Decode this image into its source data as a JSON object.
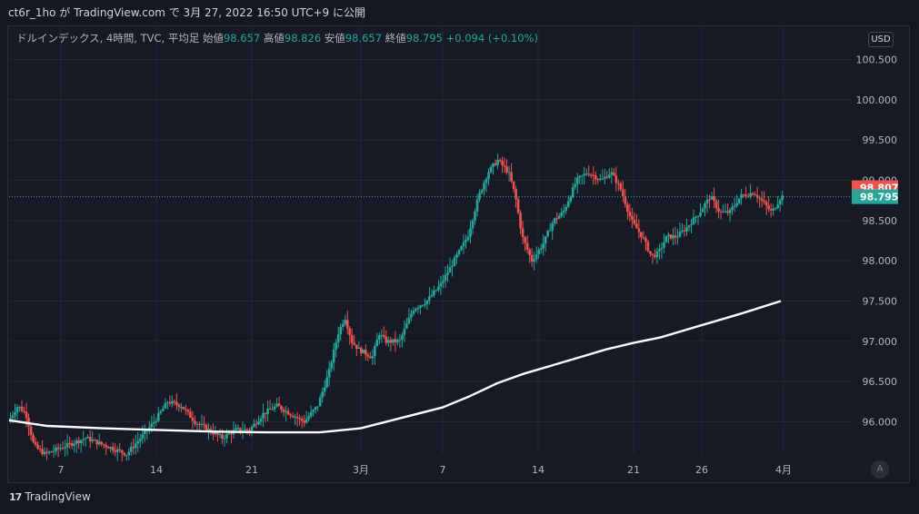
{
  "header": {
    "publish_text": "ct6r_1ho が TradingView.com で 3月 27, 2022 16:50 UTC+9 に公開"
  },
  "legend": {
    "symbol": "ドルインデックス, 4時間, TVC, 平均足",
    "open_label": "始値",
    "open": "98.657",
    "high_label": "高値",
    "high": "98.826",
    "low_label": "安値",
    "low": "98.657",
    "close_label": "終値",
    "close": "98.795",
    "change": "+0.094 (+0.10%)"
  },
  "currency_button": "USD",
  "auto_button": "A",
  "price_labels": {
    "red": "98.807",
    "green": "98.795"
  },
  "footer": {
    "brand": "TradingView",
    "logo_text": "17"
  },
  "colors": {
    "up": "#26a69a",
    "down": "#ef5350",
    "ma": "#ffffff",
    "bg": "#161a25"
  },
  "chart_data": {
    "type": "candlestick",
    "title": "ドルインデックス, 4時間, TVC, 平均足",
    "y_ticks": [
      "100.500",
      "100.000",
      "99.500",
      "99.000",
      "98.500",
      "98.000",
      "97.500",
      "97.000",
      "96.500",
      "96.000"
    ],
    "y_tick_values": [
      100.5,
      100.0,
      99.5,
      99.0,
      98.5,
      98.0,
      97.5,
      97.0,
      96.5,
      96.0
    ],
    "ylim": [
      95.6,
      100.9
    ],
    "x_ticks": [
      "7",
      "14",
      "21",
      "3月",
      "7",
      "14",
      "21",
      "26",
      "4月"
    ],
    "x_tick_days": [
      7,
      14,
      21,
      29,
      35,
      42,
      49,
      54,
      60
    ],
    "xlim": [
      3.2,
      65
    ],
    "last_price": 98.795,
    "current_price_marker": 98.807,
    "price_path": [
      [
        3.3,
        96.0
      ],
      [
        4.0,
        96.2
      ],
      [
        4.6,
        96.1
      ],
      [
        5.2,
        95.7
      ],
      [
        6.0,
        95.6
      ],
      [
        7.5,
        95.7
      ],
      [
        9.0,
        95.8
      ],
      [
        10.5,
        95.7
      ],
      [
        12.0,
        95.6
      ],
      [
        13.0,
        95.8
      ],
      [
        14.0,
        96.0
      ],
      [
        15.0,
        96.25
      ],
      [
        16.0,
        96.2
      ],
      [
        17.0,
        96.0
      ],
      [
        18.0,
        95.9
      ],
      [
        19.0,
        95.8
      ],
      [
        20.0,
        95.9
      ],
      [
        21.0,
        95.9
      ],
      [
        22.0,
        96.1
      ],
      [
        23.0,
        96.2
      ],
      [
        24.0,
        96.1
      ],
      [
        25.0,
        96.0
      ],
      [
        26.0,
        96.2
      ],
      [
        26.8,
        96.6
      ],
      [
        27.5,
        97.1
      ],
      [
        28.0,
        97.3
      ],
      [
        28.5,
        97.0
      ],
      [
        29.0,
        96.9
      ],
      [
        30.0,
        96.8
      ],
      [
        30.5,
        97.1
      ],
      [
        31.0,
        97.0
      ],
      [
        32.0,
        97.0
      ],
      [
        33.0,
        97.4
      ],
      [
        34.0,
        97.5
      ],
      [
        35.0,
        97.7
      ],
      [
        36.0,
        98.0
      ],
      [
        37.0,
        98.3
      ],
      [
        37.8,
        98.8
      ],
      [
        38.5,
        99.1
      ],
      [
        39.2,
        99.25
      ],
      [
        40.0,
        99.1
      ],
      [
        40.5,
        98.8
      ],
      [
        41.0,
        98.3
      ],
      [
        41.7,
        98.0
      ],
      [
        42.5,
        98.2
      ],
      [
        43.3,
        98.5
      ],
      [
        44.0,
        98.6
      ],
      [
        45.0,
        99.0
      ],
      [
        45.8,
        99.1
      ],
      [
        46.8,
        99.0
      ],
      [
        47.5,
        99.1
      ],
      [
        48.2,
        98.9
      ],
      [
        49.0,
        98.5
      ],
      [
        49.8,
        98.3
      ],
      [
        50.5,
        98.05
      ],
      [
        51.0,
        98.1
      ],
      [
        51.6,
        98.3
      ],
      [
        52.3,
        98.3
      ],
      [
        53.0,
        98.4
      ],
      [
        54.0,
        98.6
      ],
      [
        54.8,
        98.8
      ],
      [
        55.5,
        98.6
      ],
      [
        56.2,
        98.6
      ],
      [
        57.0,
        98.8
      ],
      [
        58.0,
        98.85
      ],
      [
        58.8,
        98.7
      ],
      [
        59.3,
        98.6
      ],
      [
        60.0,
        98.8
      ]
    ],
    "moving_average": [
      [
        3.2,
        96.02
      ],
      [
        6.0,
        95.95
      ],
      [
        10.0,
        95.92
      ],
      [
        14.0,
        95.9
      ],
      [
        18.0,
        95.88
      ],
      [
        22.0,
        95.87
      ],
      [
        26.0,
        95.87
      ],
      [
        29.0,
        95.92
      ],
      [
        32.0,
        96.05
      ],
      [
        35.0,
        96.18
      ],
      [
        37.0,
        96.32
      ],
      [
        39.0,
        96.48
      ],
      [
        41.0,
        96.6
      ],
      [
        43.0,
        96.7
      ],
      [
        45.0,
        96.8
      ],
      [
        47.0,
        96.9
      ],
      [
        49.0,
        96.98
      ],
      [
        51.0,
        97.05
      ],
      [
        53.0,
        97.15
      ],
      [
        55.0,
        97.25
      ],
      [
        57.0,
        97.35
      ],
      [
        59.8,
        97.5
      ]
    ]
  }
}
